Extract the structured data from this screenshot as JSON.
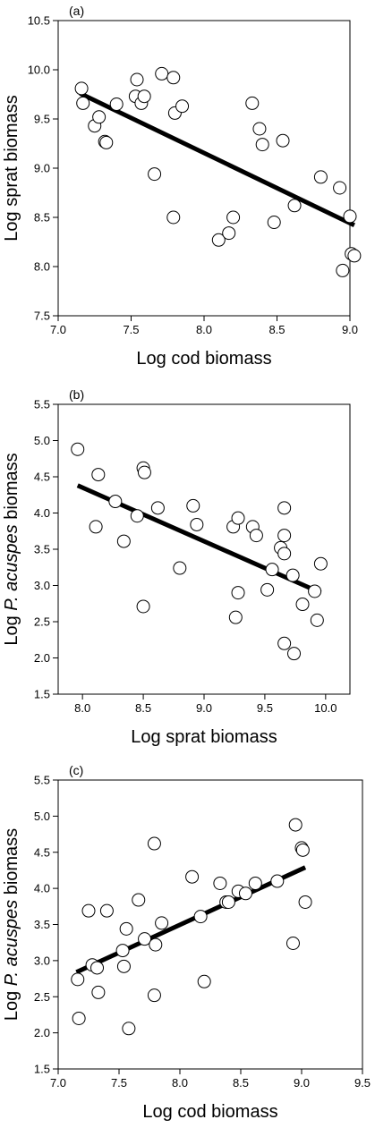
{
  "chart_data": [
    {
      "type": "scatter",
      "panel_label": "(a)",
      "xlabel": "Log cod biomass",
      "ylabel": "Log sprat biomass",
      "ylabel_italic": "",
      "ylabel_suffix": "",
      "xlim": [
        7.0,
        9.0
      ],
      "ylim": [
        7.5,
        10.5
      ],
      "xticks": [
        "7.0",
        "7.5",
        "8.0",
        "8.5",
        "9.0"
      ],
      "yticks": [
        "7.5",
        "8.0",
        "8.5",
        "9.0",
        "9.5",
        "10.0",
        "10.5"
      ],
      "grid": false,
      "points": [
        [
          7.16,
          9.81
        ],
        [
          7.17,
          9.66
        ],
        [
          7.25,
          9.43
        ],
        [
          7.28,
          9.52
        ],
        [
          7.32,
          9.27
        ],
        [
          7.33,
          9.26
        ],
        [
          7.4,
          9.65
        ],
        [
          7.53,
          9.73
        ],
        [
          7.54,
          9.9
        ],
        [
          7.57,
          9.66
        ],
        [
          7.59,
          9.73
        ],
        [
          7.66,
          8.94
        ],
        [
          7.71,
          9.96
        ],
        [
          7.79,
          9.92
        ],
        [
          7.79,
          8.5
        ],
        [
          7.8,
          9.56
        ],
        [
          7.85,
          9.63
        ],
        [
          8.1,
          8.27
        ],
        [
          8.17,
          8.34
        ],
        [
          8.2,
          8.5
        ],
        [
          8.33,
          9.66
        ],
        [
          8.38,
          9.4
        ],
        [
          8.4,
          9.24
        ],
        [
          8.48,
          8.45
        ],
        [
          8.54,
          9.28
        ],
        [
          8.62,
          8.62
        ],
        [
          8.8,
          8.91
        ],
        [
          8.93,
          8.8
        ],
        [
          8.95,
          7.96
        ],
        [
          9.0,
          8.51
        ],
        [
          9.01,
          8.13
        ],
        [
          9.03,
          8.11
        ]
      ],
      "fit_line": {
        "x": [
          7.15,
          9.03
        ],
        "y": [
          9.76,
          8.42
        ]
      }
    },
    {
      "type": "scatter",
      "panel_label": "(b)",
      "xlabel": "Log sprat biomass",
      "ylabel": "Log ",
      "ylabel_italic": "P. acuspes",
      "ylabel_suffix": " biomass",
      "xlim": [
        7.8,
        10.2
      ],
      "ylim": [
        1.5,
        5.5
      ],
      "xticks": [
        "8.0",
        "8.5",
        "9.0",
        "9.5",
        "10.0"
      ],
      "yticks": [
        "1.5",
        "2.0",
        "2.5",
        "3.0",
        "3.5",
        "4.0",
        "4.5",
        "5.0",
        "5.5"
      ],
      "grid": false,
      "points": [
        [
          7.96,
          4.88
        ],
        [
          8.11,
          3.81
        ],
        [
          8.13,
          4.53
        ],
        [
          8.27,
          4.16
        ],
        [
          8.34,
          3.61
        ],
        [
          8.45,
          3.96
        ],
        [
          8.5,
          4.62
        ],
        [
          8.51,
          4.56
        ],
        [
          8.5,
          2.71
        ],
        [
          8.62,
          4.07
        ],
        [
          8.8,
          3.24
        ],
        [
          8.91,
          4.1
        ],
        [
          8.94,
          3.84
        ],
        [
          9.24,
          3.81
        ],
        [
          9.26,
          2.56
        ],
        [
          9.28,
          3.93
        ],
        [
          9.28,
          2.9
        ],
        [
          9.4,
          3.81
        ],
        [
          9.43,
          3.69
        ],
        [
          9.52,
          2.94
        ],
        [
          9.56,
          3.22
        ],
        [
          9.63,
          3.52
        ],
        [
          9.66,
          3.44
        ],
        [
          9.66,
          3.69
        ],
        [
          9.66,
          4.07
        ],
        [
          9.66,
          2.2
        ],
        [
          9.73,
          3.14
        ],
        [
          9.74,
          2.06
        ],
        [
          9.81,
          2.74
        ],
        [
          9.91,
          2.92
        ],
        [
          9.93,
          2.52
        ],
        [
          9.96,
          3.3
        ]
      ],
      "fit_line": {
        "x": [
          7.96,
          9.96
        ],
        "y": [
          4.38,
          2.9
        ]
      }
    },
    {
      "type": "scatter",
      "panel_label": "(c)",
      "xlabel": "Log cod biomass",
      "ylabel": "Log ",
      "ylabel_italic": "P. acuspes",
      "ylabel_suffix": " biomass",
      "xlim": [
        7.0,
        9.5
      ],
      "ylim": [
        1.5,
        5.5
      ],
      "xticks": [
        "7.0",
        "7.5",
        "8.0",
        "8.5",
        "9.0",
        "9.5"
      ],
      "yticks": [
        "1.5",
        "2.0",
        "2.5",
        "3.0",
        "3.5",
        "4.0",
        "4.5",
        "5.0",
        "5.5"
      ],
      "grid": false,
      "points": [
        [
          7.16,
          2.74
        ],
        [
          7.17,
          2.2
        ],
        [
          7.25,
          3.69
        ],
        [
          7.28,
          2.94
        ],
        [
          7.32,
          2.9
        ],
        [
          7.33,
          2.56
        ],
        [
          7.4,
          3.69
        ],
        [
          7.53,
          3.14
        ],
        [
          7.54,
          2.92
        ],
        [
          7.56,
          3.44
        ],
        [
          7.58,
          2.06
        ],
        [
          7.66,
          3.84
        ],
        [
          7.71,
          3.3
        ],
        [
          7.79,
          4.62
        ],
        [
          7.79,
          2.52
        ],
        [
          7.8,
          3.22
        ],
        [
          7.85,
          3.52
        ],
        [
          8.1,
          4.16
        ],
        [
          8.17,
          3.61
        ],
        [
          8.2,
          2.71
        ],
        [
          8.33,
          4.07
        ],
        [
          8.38,
          3.81
        ],
        [
          8.4,
          3.81
        ],
        [
          8.48,
          3.96
        ],
        [
          8.54,
          3.93
        ],
        [
          8.62,
          4.07
        ],
        [
          8.8,
          4.1
        ],
        [
          8.93,
          3.24
        ],
        [
          8.95,
          4.88
        ],
        [
          9.0,
          4.56
        ],
        [
          9.01,
          4.53
        ],
        [
          9.03,
          3.81
        ]
      ],
      "fit_line": {
        "x": [
          7.15,
          9.03
        ],
        "y": [
          2.84,
          4.29
        ]
      }
    }
  ]
}
